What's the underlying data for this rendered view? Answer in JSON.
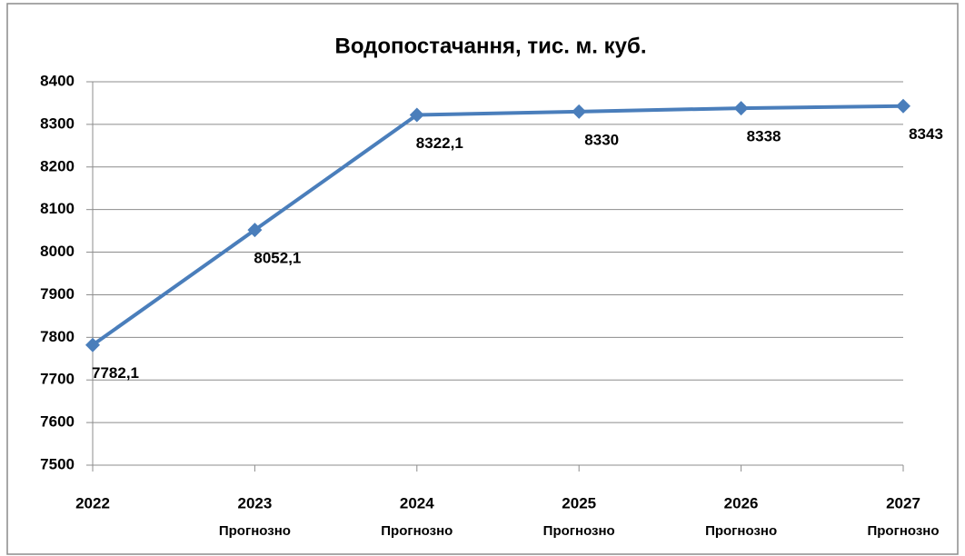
{
  "chart_data": {
    "type": "line",
    "title": "Водопостачання, тис. м. куб.",
    "categories": [
      [
        "2022"
      ],
      [
        "2023",
        "Прогнозно"
      ],
      [
        "2024",
        "Прогнозно"
      ],
      [
        "2025",
        "Прогнозно"
      ],
      [
        "2026",
        "Прогнозно"
      ],
      [
        "2027",
        "Прогнозно"
      ]
    ],
    "series": [
      {
        "color": "#4a7ebb",
        "values": [
          7782.1,
          8052.1,
          8322.1,
          8330,
          8338,
          8343
        ],
        "value_labels": [
          "7782,1",
          "8052,1",
          "8322,1",
          "8330",
          "8338",
          "8343"
        ]
      }
    ],
    "ylim": [
      7500,
      8400
    ],
    "yticks": [
      7500,
      7600,
      7700,
      7800,
      7900,
      8000,
      8100,
      8200,
      8300,
      8400
    ],
    "grid": true
  }
}
